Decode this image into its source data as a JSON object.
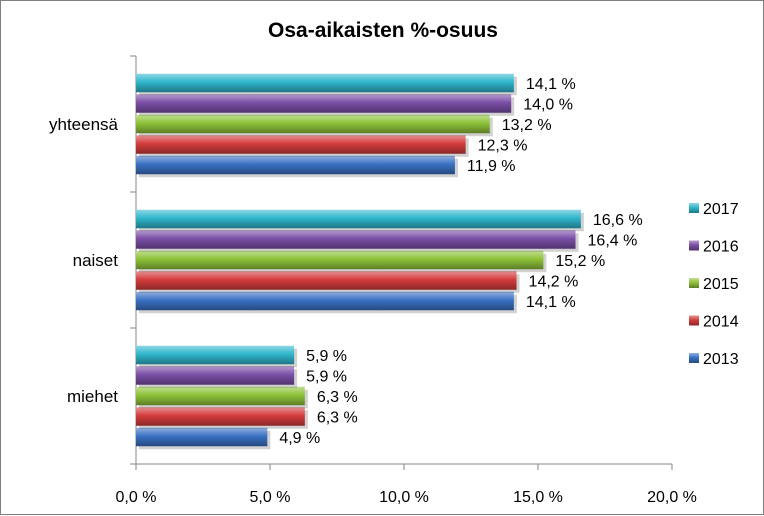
{
  "chart_data": {
    "type": "bar",
    "orientation": "horizontal",
    "title": "Osa-aikaisten %-osuus",
    "categories": [
      "yhteensä",
      "naiset",
      "miehet"
    ],
    "series": [
      {
        "name": "2013",
        "color": "#3a72c4",
        "values": [
          11.9,
          14.1,
          4.9
        ],
        "labels": [
          "11,9 %",
          "14,1 %",
          "4,9 %"
        ]
      },
      {
        "name": "2014",
        "color": "#d43c3c",
        "values": [
          12.3,
          14.2,
          6.3
        ],
        "labels": [
          "12,3 %",
          "14,2 %",
          "6,3 %"
        ]
      },
      {
        "name": "2015",
        "color": "#8fc23a",
        "values": [
          13.2,
          15.2,
          6.3
        ],
        "labels": [
          "13,2 %",
          "15,2 %",
          "6,3 %"
        ]
      },
      {
        "name": "2016",
        "color": "#7b4fa8",
        "values": [
          14.0,
          16.4,
          5.9
        ],
        "labels": [
          "14,0 %",
          "16,4 %",
          "5,9 %"
        ]
      },
      {
        "name": "2017",
        "color": "#2fb6cc",
        "values": [
          14.1,
          16.6,
          5.9
        ],
        "labels": [
          "14,1 %",
          "16,6 %",
          "5,9 %"
        ]
      }
    ],
    "xlim": [
      0,
      20
    ],
    "xticks": [
      0,
      5,
      10,
      15,
      20
    ],
    "xtick_labels": [
      "0,0 %",
      "5,0 %",
      "10,0 %",
      "15,0 %",
      "20,0 %"
    ],
    "grid": false,
    "legend_position": "right"
  }
}
